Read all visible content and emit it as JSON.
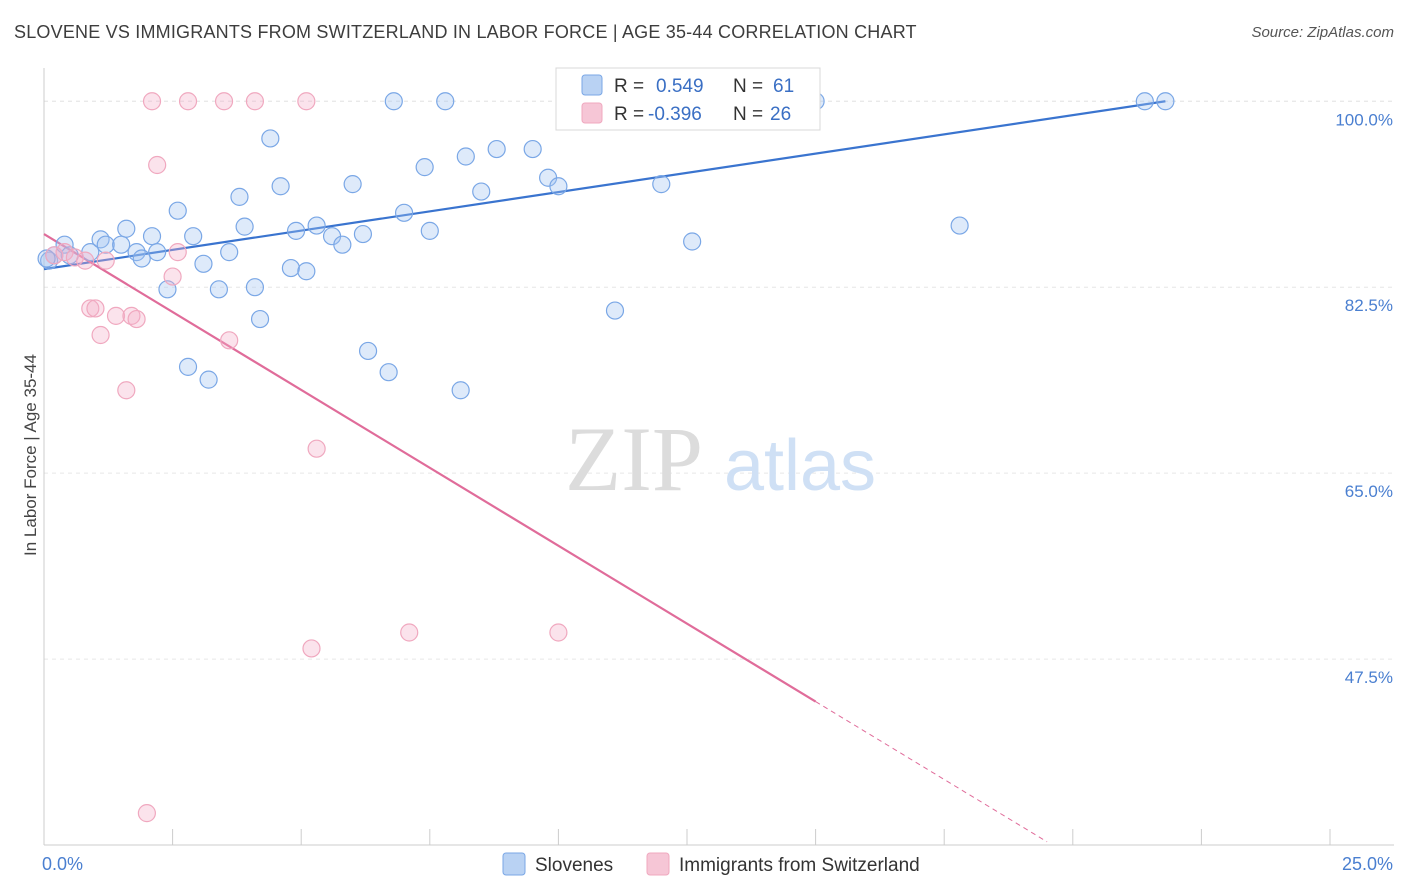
{
  "title": "SLOVENE VS IMMIGRANTS FROM SWITZERLAND IN LABOR FORCE | AGE 35-44 CORRELATION CHART",
  "source": "Source: ZipAtlas.com",
  "watermark": {
    "zip": "ZIP",
    "atlas": "atlas"
  },
  "legend_top": [
    {
      "r_label": "R =",
      "r_value": "0.549",
      "n_label": "N =",
      "n_value": "61"
    },
    {
      "r_label": "R =",
      "r_value": "-0.396",
      "n_label": "N =",
      "n_value": "26"
    }
  ],
  "chart_data": {
    "type": "scatter",
    "title": "SLOVENE VS IMMIGRANTS FROM SWITZERLAND IN LABOR FORCE | AGE 35-44 CORRELATION CHART",
    "xlabel": "",
    "ylabel": "In Labor Force | Age 35-44",
    "xlim": [
      0,
      25
    ],
    "ylim": [
      30,
      102
    ],
    "x_tick_labels": [
      "0.0%",
      "25.0%"
    ],
    "y_ticks": [
      47.5,
      65.0,
      82.5,
      100.0
    ],
    "y_tick_labels": [
      "47.5%",
      "65.0%",
      "82.5%",
      "100.0%"
    ],
    "grid": true,
    "legend_position": "bottom",
    "series": [
      {
        "name": "Slovenes",
        "color": "#7aa7e6",
        "line_color": "#3a74cf",
        "R": 0.549,
        "N": 61,
        "trend": {
          "x": [
            0,
            21.8
          ],
          "y": [
            84.2,
            100.0
          ]
        },
        "points": [
          [
            0.1,
            85.0
          ],
          [
            0.2,
            85.5
          ],
          [
            0.4,
            86.5
          ],
          [
            0.5,
            85.5
          ],
          [
            0.9,
            85.8
          ],
          [
            1.1,
            87.0
          ],
          [
            1.2,
            86.5
          ],
          [
            1.5,
            86.5
          ],
          [
            1.6,
            88.0
          ],
          [
            1.8,
            85.8
          ],
          [
            1.9,
            85.2
          ],
          [
            2.1,
            87.3
          ],
          [
            2.2,
            85.8
          ],
          [
            2.4,
            82.3
          ],
          [
            2.6,
            89.7
          ],
          [
            2.8,
            75.0
          ],
          [
            2.9,
            87.3
          ],
          [
            3.1,
            84.7
          ],
          [
            3.2,
            73.8
          ],
          [
            3.4,
            82.3
          ],
          [
            3.6,
            85.8
          ],
          [
            3.8,
            91.0
          ],
          [
            3.9,
            88.2
          ],
          [
            4.1,
            82.5
          ],
          [
            4.2,
            79.5
          ],
          [
            4.4,
            96.5
          ],
          [
            4.6,
            92.0
          ],
          [
            4.8,
            84.3
          ],
          [
            4.9,
            87.8
          ],
          [
            5.1,
            84.0
          ],
          [
            5.3,
            88.3
          ],
          [
            5.6,
            87.3
          ],
          [
            5.8,
            86.5
          ],
          [
            6.0,
            92.2
          ],
          [
            6.2,
            87.5
          ],
          [
            6.3,
            76.5
          ],
          [
            6.7,
            74.5
          ],
          [
            6.8,
            100.0
          ],
          [
            7.0,
            89.5
          ],
          [
            7.4,
            93.8
          ],
          [
            7.5,
            87.8
          ],
          [
            7.8,
            100.0
          ],
          [
            8.1,
            72.8
          ],
          [
            8.2,
            94.8
          ],
          [
            8.5,
            91.5
          ],
          [
            8.8,
            95.5
          ],
          [
            9.5,
            95.5
          ],
          [
            9.8,
            92.8
          ],
          [
            10.0,
            92.0
          ],
          [
            11.1,
            80.3
          ],
          [
            12.0,
            92.2
          ],
          [
            12.6,
            86.8
          ],
          [
            13.2,
            100.0
          ],
          [
            14.0,
            100.0
          ],
          [
            14.2,
            100.0
          ],
          [
            14.9,
            100.0
          ],
          [
            15.0,
            100.0
          ],
          [
            17.8,
            88.3
          ],
          [
            21.4,
            100.0
          ],
          [
            21.8,
            100.0
          ],
          [
            0.05,
            85.2
          ]
        ]
      },
      {
        "name": "Immigrants from Switzerland",
        "color": "#f0a8bf",
        "line_color": "#e06c9a",
        "R": -0.396,
        "N": 26,
        "trend": {
          "x": [
            0,
            15.0
          ],
          "y": [
            87.5,
            43.5
          ]
        },
        "trend_extension": {
          "x": [
            15.0,
            19.5
          ],
          "y": [
            43.5,
            30.3
          ]
        },
        "points": [
          [
            0.2,
            85.5
          ],
          [
            0.4,
            85.8
          ],
          [
            0.6,
            85.3
          ],
          [
            0.8,
            85.0
          ],
          [
            0.9,
            80.5
          ],
          [
            1.0,
            80.5
          ],
          [
            1.1,
            78.0
          ],
          [
            1.2,
            85.0
          ],
          [
            1.4,
            79.8
          ],
          [
            1.6,
            72.8
          ],
          [
            1.7,
            79.8
          ],
          [
            1.8,
            79.5
          ],
          [
            2.1,
            100.0
          ],
          [
            2.2,
            94.0
          ],
          [
            2.5,
            83.5
          ],
          [
            2.6,
            85.8
          ],
          [
            2.8,
            100.0
          ],
          [
            3.5,
            100.0
          ],
          [
            3.6,
            77.5
          ],
          [
            4.1,
            100.0
          ],
          [
            5.1,
            100.0
          ],
          [
            5.2,
            48.5
          ],
          [
            5.3,
            67.3
          ],
          [
            7.1,
            50.0
          ],
          [
            10.0,
            50.0
          ],
          [
            2.0,
            33.0
          ]
        ]
      }
    ]
  },
  "legend_bottom": [
    {
      "label": "Slovenes"
    },
    {
      "label": "Immigrants from Switzerland"
    }
  ]
}
